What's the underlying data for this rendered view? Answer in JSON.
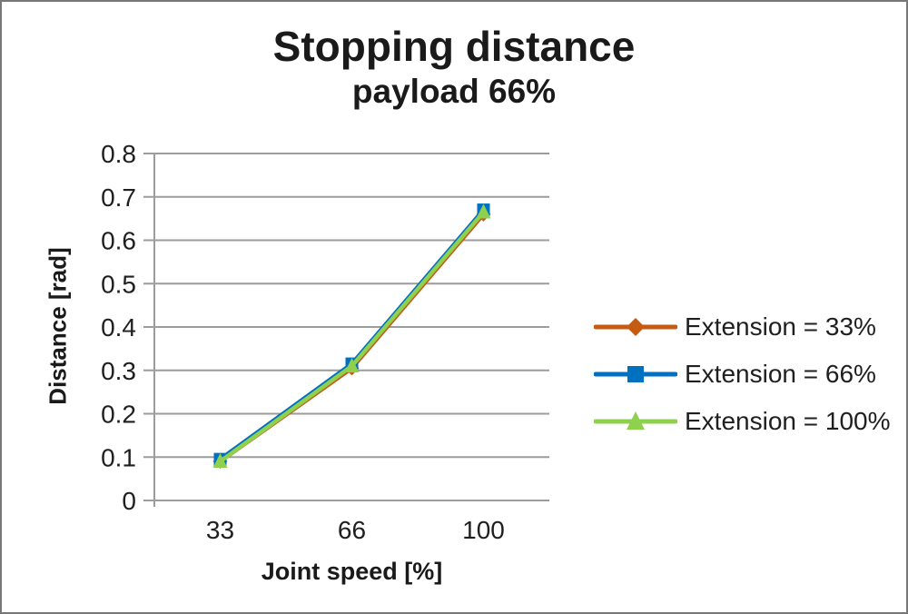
{
  "chart_data": {
    "type": "line",
    "title": "Stopping distance",
    "subtitle": "payload 66%",
    "xlabel": "Joint speed [%]",
    "ylabel": "Distance [rad]",
    "categories": [
      "33",
      "66",
      "100"
    ],
    "y_ticks": [
      "0",
      "0.1",
      "0.2",
      "0.3",
      "0.4",
      "0.5",
      "0.6",
      "0.7",
      "0.8"
    ],
    "ylim": [
      0,
      0.8
    ],
    "grid": true,
    "legend_position": "right",
    "series": [
      {
        "name": "Extension = 33%",
        "color": "#c55a11",
        "marker": "diamond",
        "values": [
          0.09,
          0.305,
          0.66
        ]
      },
      {
        "name": "Extension = 66%",
        "color": "#0070c0",
        "marker": "square",
        "values": [
          0.095,
          0.315,
          0.67
        ]
      },
      {
        "name": "Extension = 100%",
        "color": "#8fd14f",
        "marker": "triangle",
        "values": [
          0.09,
          0.31,
          0.665
        ]
      }
    ],
    "colors": {
      "gridline": "#9c9c9c",
      "axis": "#9c9c9c",
      "text": "#1f1f1f",
      "background": "#ffffff"
    }
  }
}
